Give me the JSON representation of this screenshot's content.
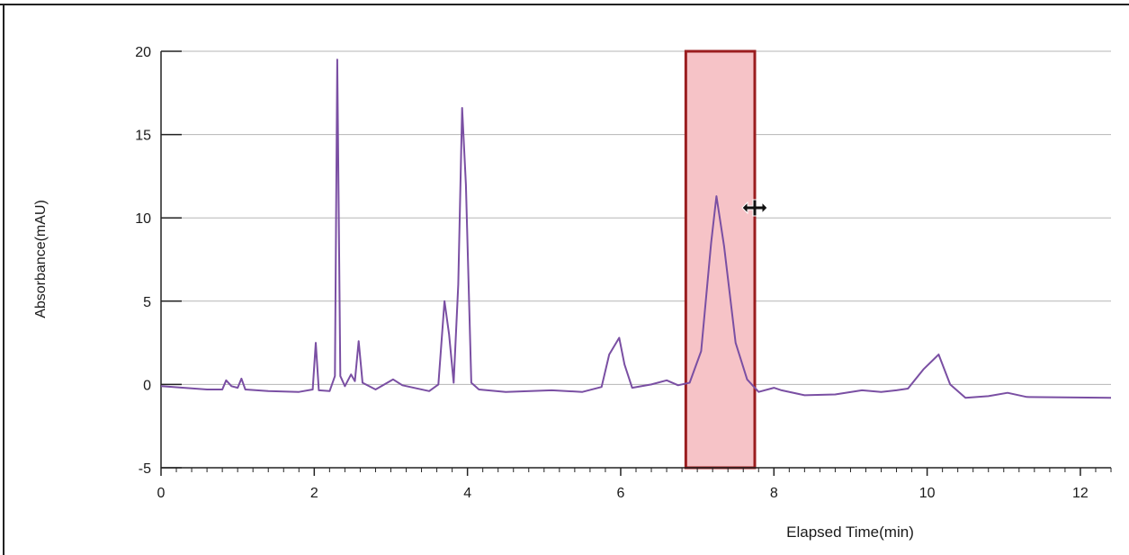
{
  "chart_data": {
    "type": "line",
    "title": "",
    "xlabel": "Elapsed Time(min)",
    "ylabel": "Absorbance(mAU)",
    "xlim": [
      0,
      12.4
    ],
    "ylim": [
      -5,
      20
    ],
    "x_ticks": [
      0,
      2,
      4,
      6,
      8,
      10,
      12
    ],
    "y_ticks": [
      -5,
      0,
      5,
      10,
      15,
      20
    ],
    "grid": "horizontal",
    "line_color": "#7a4fa3",
    "selection": {
      "x_start": 6.85,
      "x_end": 7.75,
      "fill_color": "#f6c3c7",
      "edge_color": "#9a1d1f"
    },
    "cursor_icon": "move-horizontal-cursor-icon",
    "series": [
      {
        "values": [
          [
            0.0,
            -0.1
          ],
          [
            0.3,
            -0.2
          ],
          [
            0.6,
            -0.3
          ],
          [
            0.8,
            -0.3
          ],
          [
            0.85,
            0.25
          ],
          [
            0.92,
            -0.1
          ],
          [
            1.0,
            -0.2
          ],
          [
            1.05,
            0.35
          ],
          [
            1.1,
            -0.3
          ],
          [
            1.4,
            -0.4
          ],
          [
            1.8,
            -0.45
          ],
          [
            1.98,
            -0.3
          ],
          [
            2.02,
            2.5
          ],
          [
            2.06,
            -0.35
          ],
          [
            2.2,
            -0.4
          ],
          [
            2.27,
            0.5
          ],
          [
            2.3,
            19.5
          ],
          [
            2.34,
            0.5
          ],
          [
            2.4,
            -0.1
          ],
          [
            2.48,
            0.6
          ],
          [
            2.53,
            0.2
          ],
          [
            2.58,
            2.6
          ],
          [
            2.63,
            0.1
          ],
          [
            2.8,
            -0.3
          ],
          [
            3.03,
            0.3
          ],
          [
            3.15,
            -0.05
          ],
          [
            3.5,
            -0.4
          ],
          [
            3.62,
            0.0
          ],
          [
            3.7,
            5.0
          ],
          [
            3.76,
            3.0
          ],
          [
            3.82,
            0.1
          ],
          [
            3.88,
            6.0
          ],
          [
            3.93,
            16.6
          ],
          [
            3.98,
            12.0
          ],
          [
            4.05,
            0.1
          ],
          [
            4.15,
            -0.3
          ],
          [
            4.5,
            -0.45
          ],
          [
            5.1,
            -0.35
          ],
          [
            5.5,
            -0.45
          ],
          [
            5.75,
            -0.15
          ],
          [
            5.85,
            1.8
          ],
          [
            5.98,
            2.8
          ],
          [
            6.05,
            1.2
          ],
          [
            6.15,
            -0.2
          ],
          [
            6.4,
            0.0
          ],
          [
            6.6,
            0.25
          ],
          [
            6.75,
            -0.05
          ],
          [
            6.9,
            0.1
          ],
          [
            7.05,
            2.0
          ],
          [
            7.18,
            8.5
          ],
          [
            7.25,
            11.3
          ],
          [
            7.35,
            8.3
          ],
          [
            7.5,
            2.5
          ],
          [
            7.65,
            0.3
          ],
          [
            7.8,
            -0.45
          ],
          [
            8.0,
            -0.2
          ],
          [
            8.1,
            -0.35
          ],
          [
            8.4,
            -0.65
          ],
          [
            8.8,
            -0.6
          ],
          [
            9.15,
            -0.35
          ],
          [
            9.4,
            -0.45
          ],
          [
            9.6,
            -0.35
          ],
          [
            9.75,
            -0.25
          ],
          [
            9.95,
            0.9
          ],
          [
            10.15,
            1.8
          ],
          [
            10.3,
            0.0
          ],
          [
            10.5,
            -0.8
          ],
          [
            10.8,
            -0.7
          ],
          [
            11.05,
            -0.5
          ],
          [
            11.3,
            -0.75
          ],
          [
            12.4,
            -0.8
          ]
        ]
      }
    ]
  }
}
